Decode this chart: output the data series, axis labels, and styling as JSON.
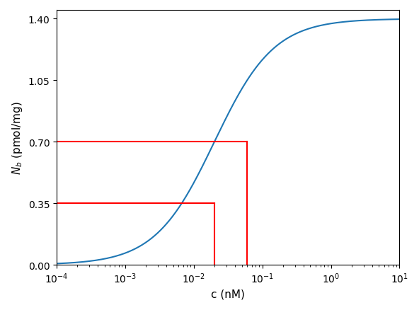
{
  "Nmax": 1.4,
  "Kd": 0.02,
  "n": 1,
  "xmin": 0.0001,
  "xmax": 10,
  "ymin": 0.0,
  "ymax": 1.45,
  "yticks": [
    0.0,
    0.35,
    0.7,
    1.05,
    1.4
  ],
  "red_c1": 0.02,
  "red_Nb1": 0.35,
  "red_c2": 0.06,
  "red_Nb2": 0.7,
  "xlabel": "c (nM)",
  "ylabel": "$N_b$ (pmol/mg)",
  "curve_color": "#1f77b4",
  "red_color": "#ff0000",
  "background_color": "#ffffff",
  "curve_linewidth": 1.5,
  "red_linewidth": 1.5,
  "figwidth": 5.92,
  "figheight": 4.39,
  "dpi": 100
}
